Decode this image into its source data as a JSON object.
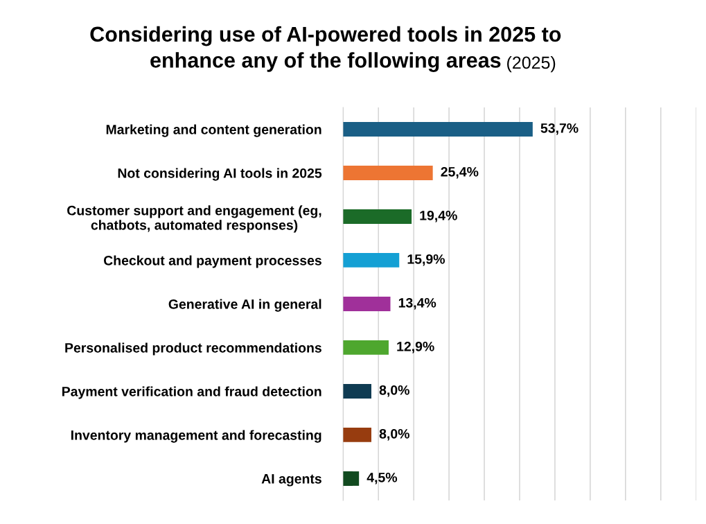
{
  "chart_data": {
    "type": "bar",
    "orientation": "horizontal",
    "title": "Considering use of AI-powered tools in 2025 to\nenhance any of the following areas",
    "subtitle": "(2025)",
    "categories": [
      "Marketing and content generation",
      "Not considering AI tools in 2025",
      "Customer support and engagement (eg,\nchatbots, automated responses)",
      "Checkout and payment processes",
      "Generative AI in general",
      "Personalised product recommendations",
      "Payment verification and fraud detection",
      "Inventory management and forecasting",
      "AI agents"
    ],
    "values": [
      53.7,
      25.4,
      19.4,
      15.9,
      13.4,
      12.9,
      8.0,
      8.0,
      4.5
    ],
    "value_labels": [
      "53,7%",
      "25,4%",
      "19,4%",
      "15,9%",
      "13,4%",
      "12,9%",
      "8,0%",
      "8,0%",
      "4,5%"
    ],
    "colors": [
      "#1a5f86",
      "#ed7533",
      "#1b6b28",
      "#14a0d4",
      "#a0309a",
      "#4ea72e",
      "#0f3b52",
      "#973c0f",
      "#114a1f"
    ],
    "xlim": [
      0,
      100
    ],
    "xticks": [
      {
        "value": 0,
        "label": null
      },
      {
        "value": 10,
        "label": null
      },
      {
        "value": 20,
        "label": null
      },
      {
        "value": 30,
        "label": null
      },
      {
        "value": 40,
        "label": null
      },
      {
        "value": 50,
        "label": null
      },
      {
        "value": 60,
        "label": null
      },
      {
        "value": 70,
        "label": null
      },
      {
        "value": 80,
        "label": null
      },
      {
        "value": 90,
        "label": null
      },
      {
        "value": 100,
        "label": null
      }
    ],
    "tick_labels": "y",
    "grid": "x",
    "legend": false
  }
}
